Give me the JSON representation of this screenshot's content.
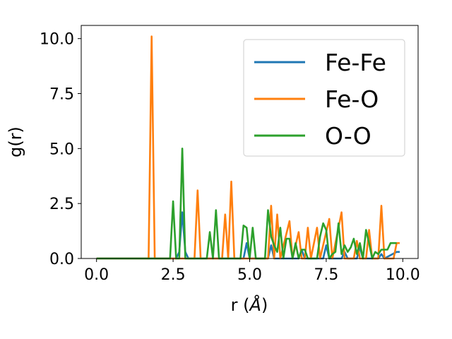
{
  "chart_data": {
    "type": "line",
    "xlabel": "r (",
    "xlabel_unit": "Å",
    "xlabel_close": ")",
    "ylabel": "g(r)",
    "xlim": [
      -0.5,
      10.5
    ],
    "ylim": [
      0.0,
      10.6
    ],
    "xticks": [
      0.0,
      2.5,
      5.0,
      7.5,
      10.0
    ],
    "xtick_labels": [
      "0.0",
      "2.5",
      "5.0",
      "7.5",
      "10.0"
    ],
    "yticks": [
      0.0,
      2.5,
      5.0,
      7.5,
      10.0
    ],
    "ytick_labels": [
      "0.0",
      "2.5",
      "5.0",
      "7.5",
      "10.0"
    ],
    "grid": false,
    "legend_position": "top-right",
    "series": [
      {
        "name": "Fe-Fe",
        "color": "#1f77b4",
        "points": [
          [
            0,
            0
          ],
          [
            1,
            0
          ],
          [
            2,
            0
          ],
          [
            2.6,
            0
          ],
          [
            2.7,
            0.3
          ],
          [
            2.8,
            2.1
          ],
          [
            2.9,
            0.3
          ],
          [
            3.0,
            0
          ],
          [
            4.8,
            0
          ],
          [
            4.9,
            0.7
          ],
          [
            5.0,
            0
          ],
          [
            5.6,
            0
          ],
          [
            5.7,
            0.6
          ],
          [
            5.8,
            0
          ],
          [
            6.6,
            0
          ],
          [
            6.7,
            0.4
          ],
          [
            6.8,
            0
          ],
          [
            7.4,
            0
          ],
          [
            7.5,
            0.6
          ],
          [
            7.6,
            0
          ],
          [
            8.0,
            0
          ],
          [
            8.1,
            0.3
          ],
          [
            8.2,
            0
          ],
          [
            8.5,
            0
          ],
          [
            8.6,
            0.5
          ],
          [
            8.7,
            0
          ],
          [
            9.2,
            0
          ],
          [
            9.3,
            0.2
          ],
          [
            9.4,
            0
          ],
          [
            9.8,
            0.3
          ],
          [
            9.9,
            0.3
          ]
        ]
      },
      {
        "name": "Fe-O",
        "color": "#ff7f0e",
        "points": [
          [
            0,
            0
          ],
          [
            1.7,
            0
          ],
          [
            1.8,
            10.1
          ],
          [
            1.9,
            0
          ],
          [
            3.2,
            0
          ],
          [
            3.3,
            3.1
          ],
          [
            3.4,
            0
          ],
          [
            4.1,
            0
          ],
          [
            4.2,
            2.0
          ],
          [
            4.3,
            0
          ],
          [
            4.4,
            3.5
          ],
          [
            4.5,
            0
          ],
          [
            5.6,
            0
          ],
          [
            5.7,
            2.4
          ],
          [
            5.8,
            0
          ],
          [
            5.9,
            2.0
          ],
          [
            6.0,
            0
          ],
          [
            6.3,
            1.7
          ],
          [
            6.4,
            0
          ],
          [
            6.6,
            1.2
          ],
          [
            6.7,
            0
          ],
          [
            6.8,
            0
          ],
          [
            6.9,
            1.4
          ],
          [
            7.0,
            0
          ],
          [
            7.2,
            1.4
          ],
          [
            7.3,
            0
          ],
          [
            7.6,
            1.8
          ],
          [
            7.7,
            0
          ],
          [
            8.0,
            2.1
          ],
          [
            8.1,
            0
          ],
          [
            8.4,
            0
          ],
          [
            8.5,
            0.8
          ],
          [
            8.6,
            0
          ],
          [
            8.8,
            0
          ],
          [
            8.9,
            1.3
          ],
          [
            9.0,
            0
          ],
          [
            9.2,
            0
          ],
          [
            9.3,
            2.4
          ],
          [
            9.4,
            0
          ],
          [
            9.7,
            0
          ],
          [
            9.8,
            0.7
          ],
          [
            9.9,
            0.7
          ]
        ]
      },
      {
        "name": "O-O",
        "color": "#2ca02c",
        "points": [
          [
            0,
            0
          ],
          [
            2.4,
            0
          ],
          [
            2.5,
            2.6
          ],
          [
            2.6,
            0
          ],
          [
            2.7,
            0
          ],
          [
            2.8,
            5.0
          ],
          [
            2.9,
            0
          ],
          [
            3.6,
            0
          ],
          [
            3.7,
            1.2
          ],
          [
            3.8,
            0
          ],
          [
            3.9,
            2.2
          ],
          [
            4.0,
            0
          ],
          [
            4.6,
            0
          ],
          [
            4.7,
            0
          ],
          [
            4.8,
            1.5
          ],
          [
            4.9,
            1.4
          ],
          [
            5.0,
            0
          ],
          [
            5.1,
            1.4
          ],
          [
            5.2,
            0
          ],
          [
            5.5,
            0
          ],
          [
            5.6,
            2.2
          ],
          [
            5.7,
            1.0
          ],
          [
            5.8,
            0.6
          ],
          [
            5.9,
            0.3
          ],
          [
            6.0,
            1.4
          ],
          [
            6.1,
            0
          ],
          [
            6.2,
            0.9
          ],
          [
            6.3,
            0.9
          ],
          [
            6.4,
            0
          ],
          [
            6.5,
            0.7
          ],
          [
            6.6,
            0
          ],
          [
            6.7,
            0.4
          ],
          [
            6.8,
            0.4
          ],
          [
            6.9,
            0
          ],
          [
            7.2,
            0
          ],
          [
            7.3,
            1.0
          ],
          [
            7.4,
            1.6
          ],
          [
            7.5,
            1.3
          ],
          [
            7.6,
            0
          ],
          [
            7.7,
            0.2
          ],
          [
            7.8,
            0.3
          ],
          [
            7.9,
            1.6
          ],
          [
            8.0,
            0.2
          ],
          [
            8.1,
            0.6
          ],
          [
            8.2,
            0.3
          ],
          [
            8.3,
            0.5
          ],
          [
            8.4,
            0.9
          ],
          [
            8.5,
            0.2
          ],
          [
            8.6,
            0.7
          ],
          [
            8.7,
            0
          ],
          [
            8.8,
            1.3
          ],
          [
            8.9,
            0.7
          ],
          [
            9.0,
            0
          ],
          [
            9.1,
            0.3
          ],
          [
            9.2,
            0.2
          ],
          [
            9.3,
            0.4
          ],
          [
            9.4,
            0.4
          ],
          [
            9.5,
            0.4
          ],
          [
            9.6,
            0.7
          ],
          [
            9.7,
            0.7
          ],
          [
            9.8,
            0.7
          ]
        ]
      }
    ]
  }
}
